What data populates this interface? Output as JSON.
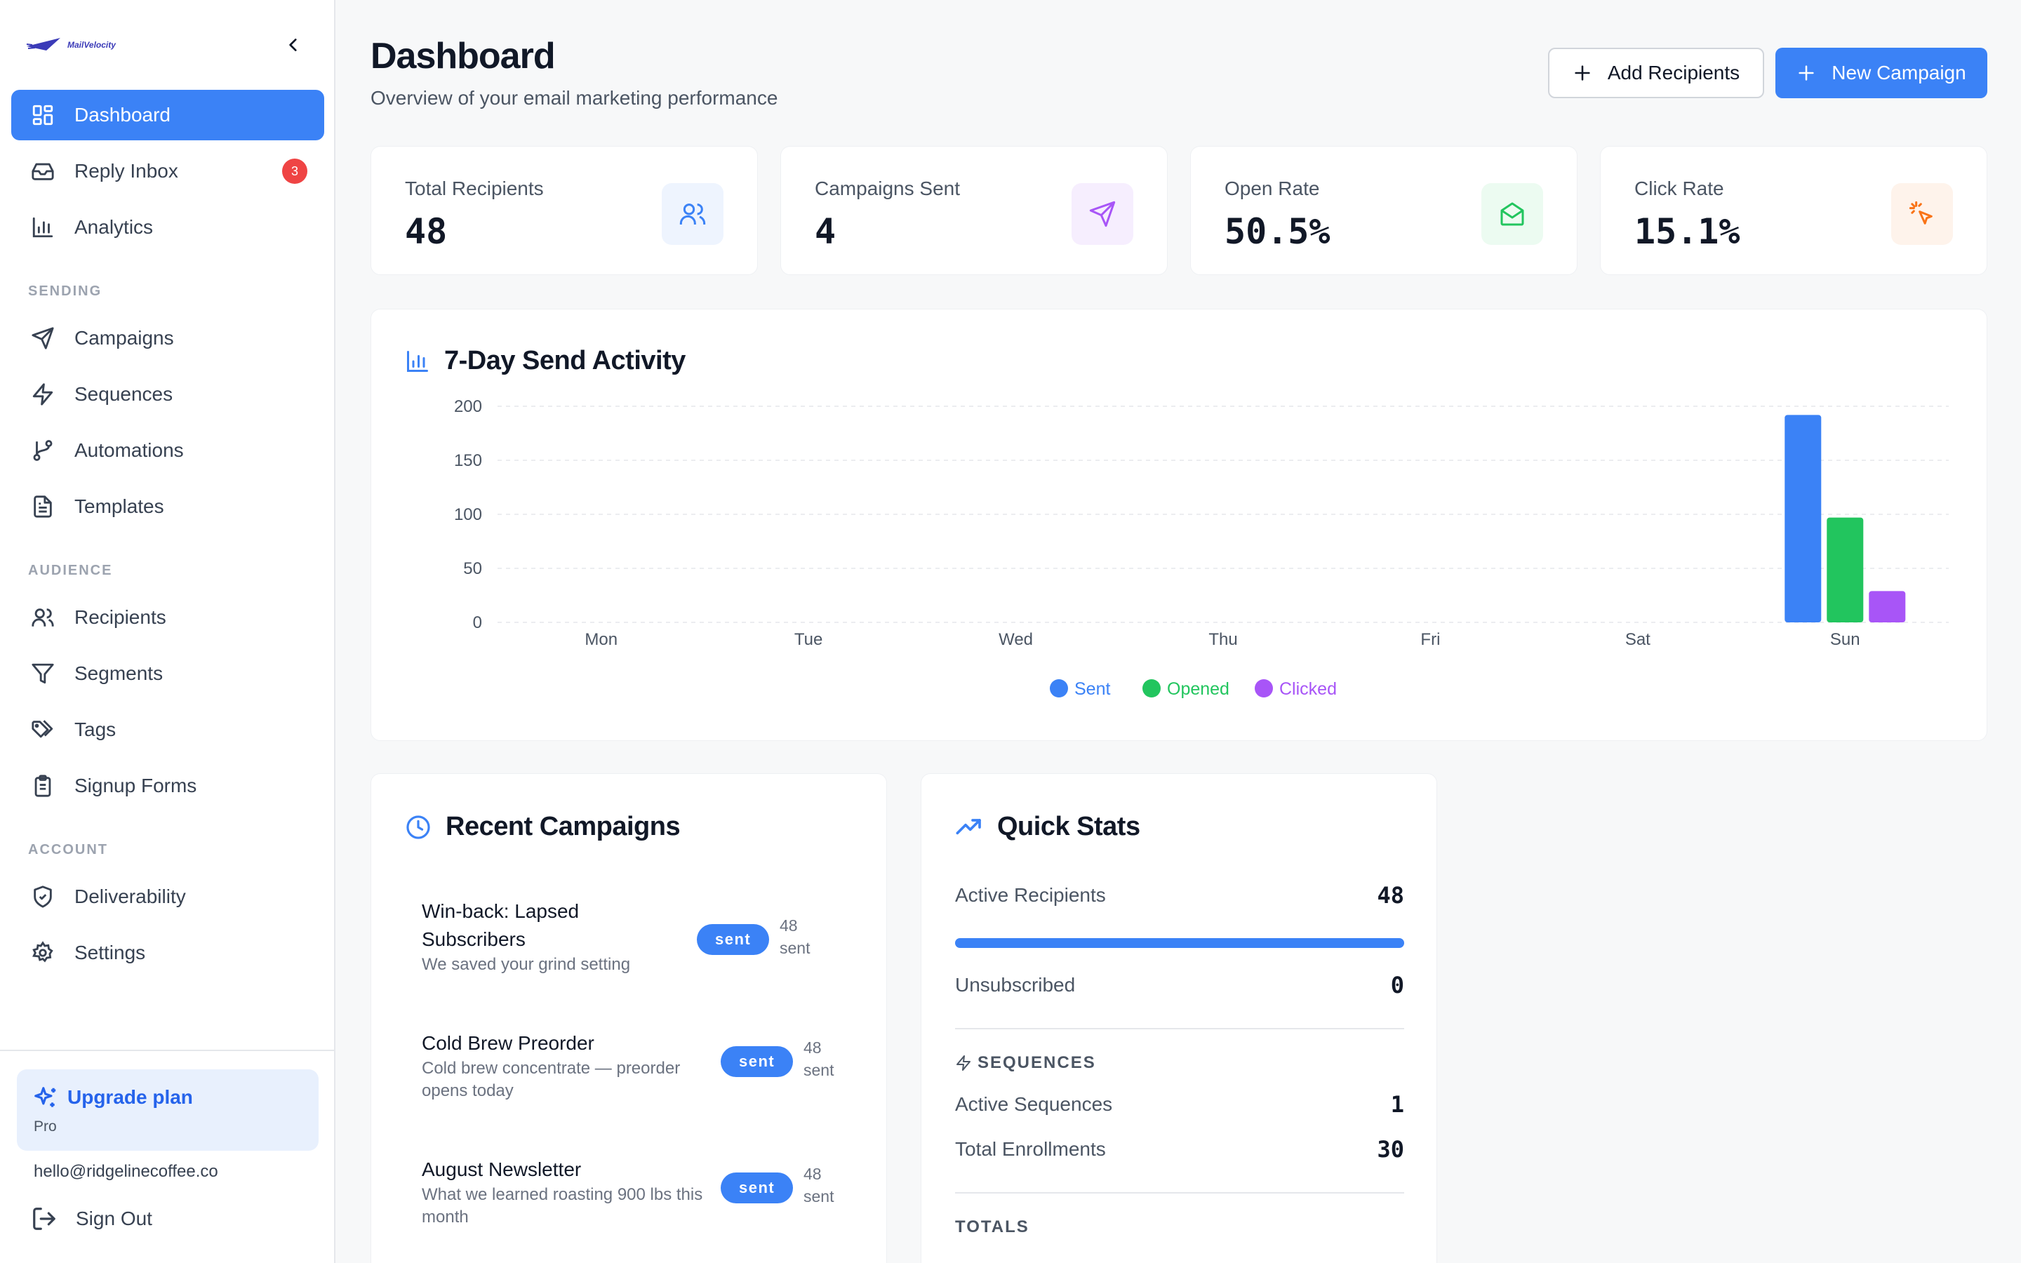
{
  "brand": {
    "logo_text": "MailVelocity"
  },
  "sidebar": {
    "items": [
      {
        "label": "Dashboard"
      },
      {
        "label": "Reply Inbox",
        "badge": "3"
      },
      {
        "label": "Analytics"
      },
      {
        "label": "Campaigns"
      },
      {
        "label": "Sequences"
      },
      {
        "label": "Automations"
      },
      {
        "label": "Templates"
      },
      {
        "label": "Recipients"
      },
      {
        "label": "Segments"
      },
      {
        "label": "Tags"
      },
      {
        "label": "Signup Forms"
      },
      {
        "label": "Deliverability"
      },
      {
        "label": "Settings"
      }
    ],
    "sections": {
      "sending": "SENDING",
      "audience": "AUDIENCE",
      "account": "ACCOUNT"
    },
    "upgrade": {
      "title": "Upgrade plan",
      "plan": "Pro"
    },
    "user_email": "hello@ridgelinecoffee.co",
    "sign_out": "Sign Out"
  },
  "header": {
    "title": "Dashboard",
    "subtitle": "Overview of your email marketing performance",
    "add_recipients": "Add Recipients",
    "new_campaign": "New Campaign"
  },
  "stats": [
    {
      "label": "Total Recipients",
      "value": "48",
      "icon": "users-icon",
      "color": "#3b82f6",
      "bg": "#eef4fe"
    },
    {
      "label": "Campaigns Sent",
      "value": "4",
      "icon": "send-icon",
      "color": "#a855f7",
      "bg": "#f6eefe"
    },
    {
      "label": "Open Rate",
      "value": "50.5%",
      "icon": "mail-open-icon",
      "color": "#22c55e",
      "bg": "#ecfbf1"
    },
    {
      "label": "Click Rate",
      "value": "15.1%",
      "icon": "pointer-click-icon",
      "color": "#f97316",
      "bg": "#fef3eb"
    }
  ],
  "chart_card": {
    "title": "7-Day Send Activity"
  },
  "chart_data": {
    "type": "bar",
    "categories": [
      "Mon",
      "Tue",
      "Wed",
      "Thu",
      "Fri",
      "Sat",
      "Sun"
    ],
    "series": [
      {
        "name": "Sent",
        "color": "#3b82f6",
        "values": [
          0,
          0,
          0,
          0,
          0,
          0,
          192
        ]
      },
      {
        "name": "Opened",
        "color": "#22c55e",
        "values": [
          0,
          0,
          0,
          0,
          0,
          0,
          97
        ]
      },
      {
        "name": "Clicked",
        "color": "#a855f7",
        "values": [
          0,
          0,
          0,
          0,
          0,
          0,
          29
        ]
      }
    ],
    "yticks": [
      "0",
      "50",
      "100",
      "150",
      "200"
    ],
    "ylim": [
      0,
      200
    ],
    "grid": true,
    "legend": "bottom-center"
  },
  "recent": {
    "title": "Recent Campaigns",
    "items": [
      {
        "title": "Win-back: Lapsed Subscribers",
        "desc": "We saved your grind setting",
        "status": "sent",
        "count": "48",
        "count_unit": "sent"
      },
      {
        "title": "Cold Brew Preorder",
        "desc": "Cold brew concentrate — preorder opens today",
        "status": "sent",
        "count": "48",
        "count_unit": "sent"
      },
      {
        "title": "August Newsletter",
        "desc": "What we learned roasting 900 lbs this month",
        "status": "sent",
        "count": "48",
        "count_unit": "sent"
      }
    ]
  },
  "quick": {
    "title": "Quick Stats",
    "active_recipients_label": "Active Recipients",
    "active_recipients": "48",
    "active_fraction": 1.0,
    "unsubscribed_label": "Unsubscribed",
    "unsubscribed": "0",
    "sequences_header": "SEQUENCES",
    "active_sequences_label": "Active Sequences",
    "active_sequences": "1",
    "total_enrollments_label": "Total Enrollments",
    "total_enrollments": "30",
    "totals_header": "TOTALS"
  }
}
